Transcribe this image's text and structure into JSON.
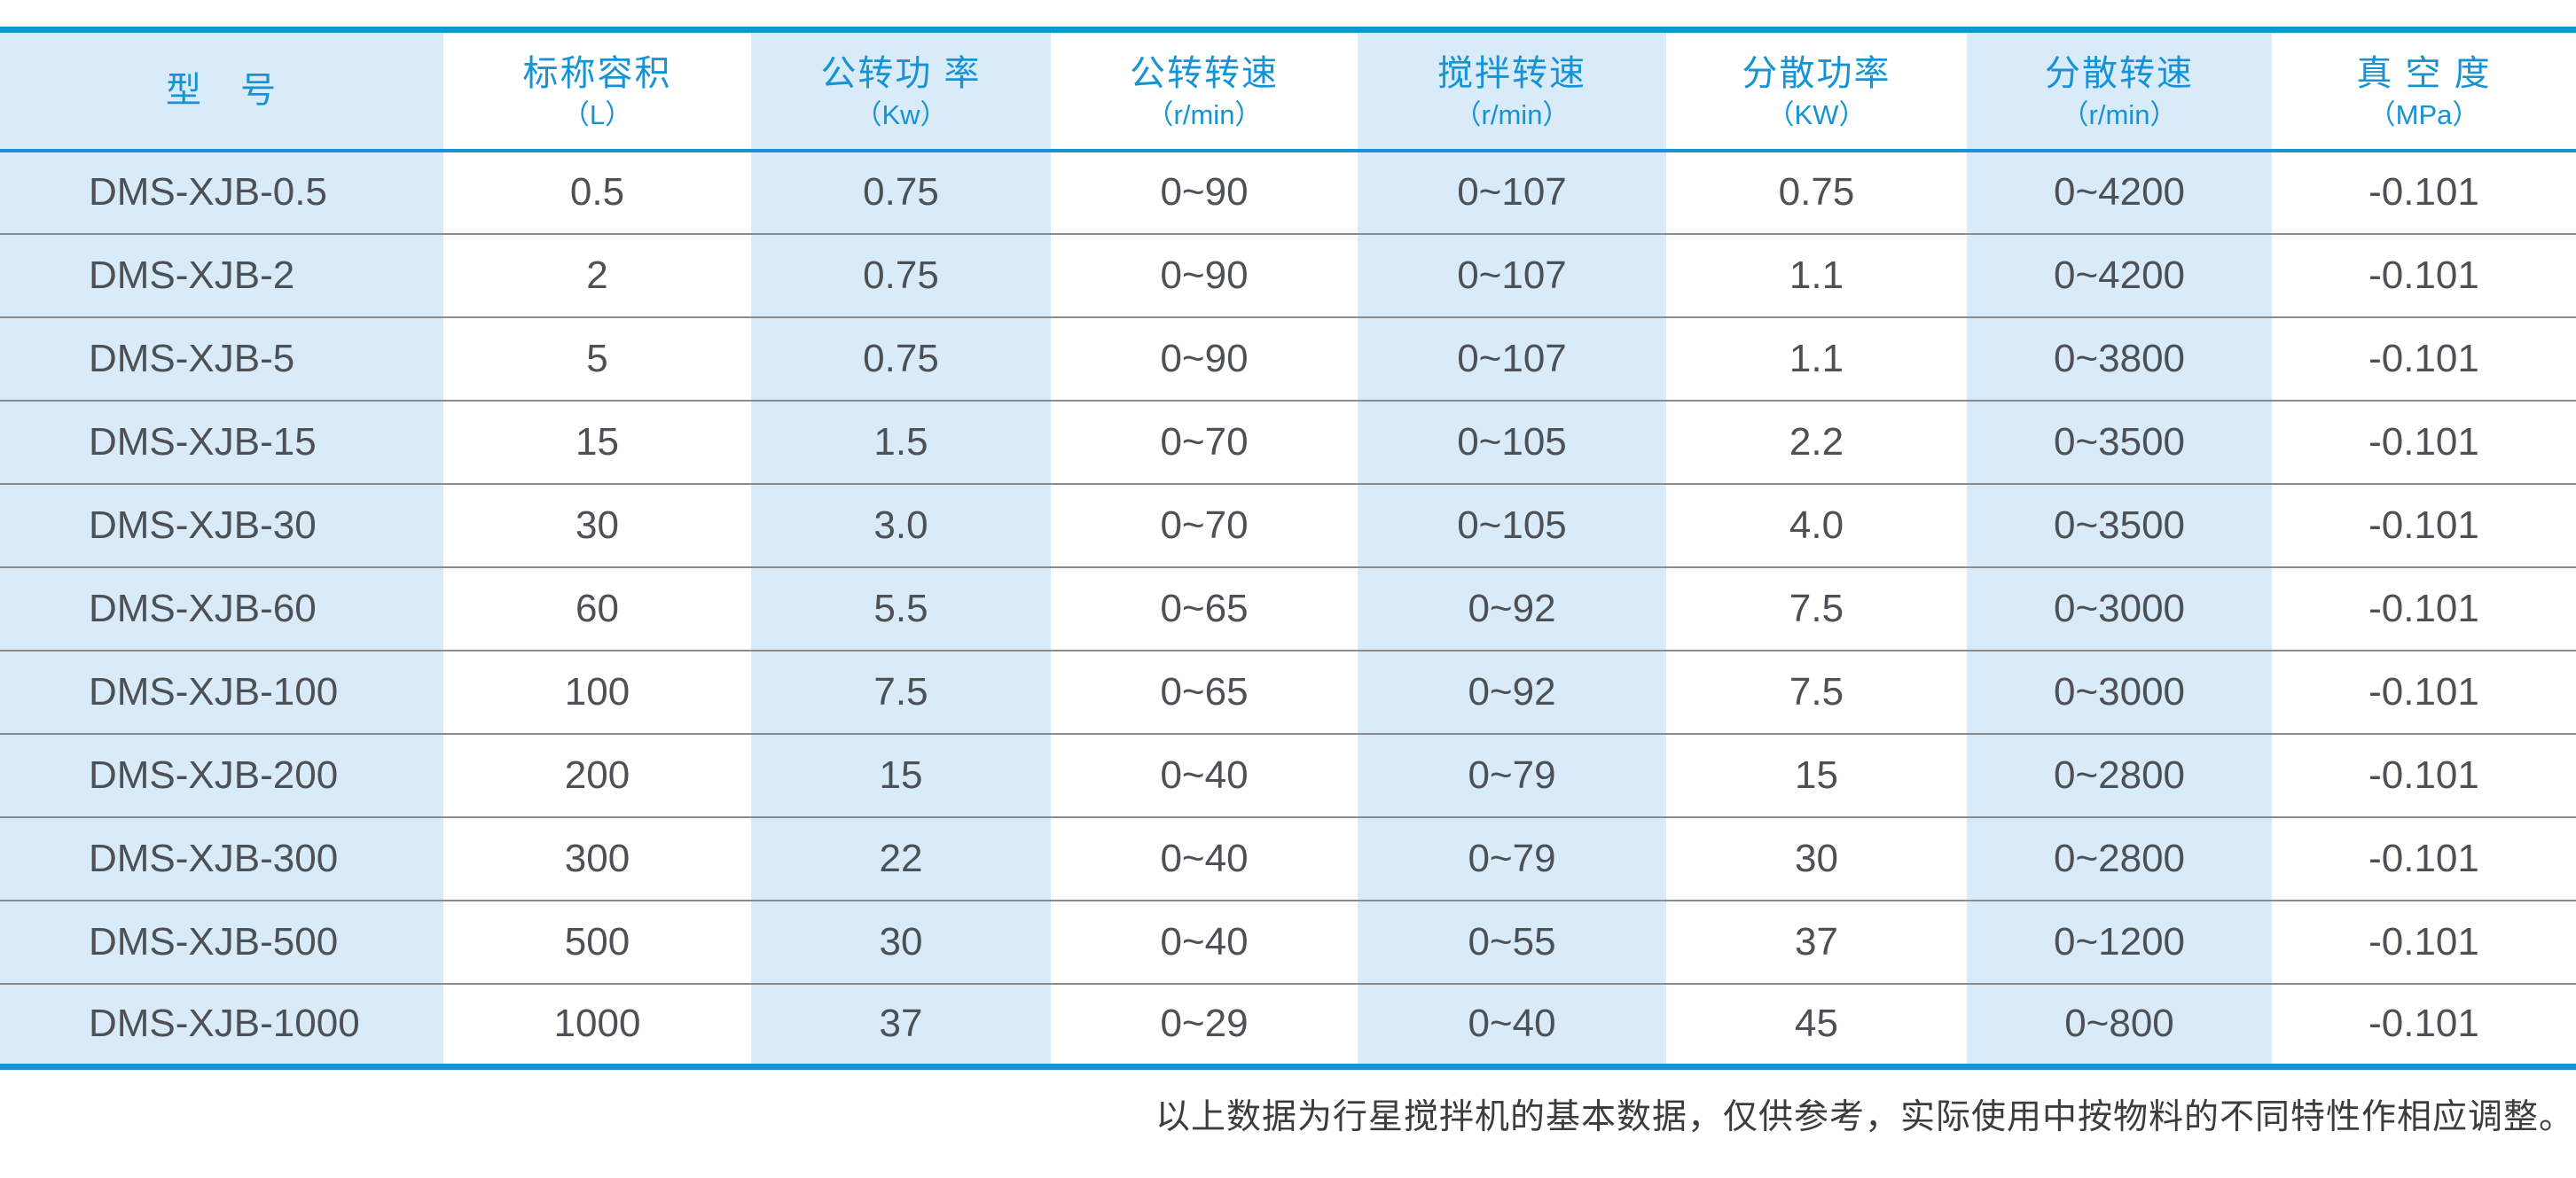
{
  "colors": {
    "accent_blue": "#1793d3",
    "stripe_blue": "#d9eaf8",
    "row_separator_gray": "#8c8c8c",
    "header_text_blue": "#1793d3",
    "body_text_gray": "#4d5054"
  },
  "table": {
    "columns": [
      {
        "title": "型　号",
        "unit": ""
      },
      {
        "title": "标称容积",
        "unit": "（L）"
      },
      {
        "title": "公转功 率",
        "unit": "（Kw）"
      },
      {
        "title": "公转转速",
        "unit": "（r/min）"
      },
      {
        "title": "搅拌转速",
        "unit": "（r/min）"
      },
      {
        "title": "分散功率",
        "unit": "（KW）"
      },
      {
        "title": "分散转速",
        "unit": "（r/min）"
      },
      {
        "title": "真 空 度",
        "unit": "（MPa）"
      }
    ],
    "rows": [
      [
        "DMS-XJB-0.5",
        "0.5",
        "0.75",
        "0~90",
        "0~107",
        "0.75",
        "0~4200",
        "-0.101"
      ],
      [
        "DMS-XJB-2",
        "2",
        "0.75",
        "0~90",
        "0~107",
        "1.1",
        "0~4200",
        "-0.101"
      ],
      [
        "DMS-XJB-5",
        "5",
        "0.75",
        "0~90",
        "0~107",
        "1.1",
        "0~3800",
        "-0.101"
      ],
      [
        "DMS-XJB-15",
        "15",
        "1.5",
        "0~70",
        "0~105",
        "2.2",
        "0~3500",
        "-0.101"
      ],
      [
        "DMS-XJB-30",
        "30",
        "3.0",
        "0~70",
        "0~105",
        "4.0",
        "0~3500",
        "-0.101"
      ],
      [
        "DMS-XJB-60",
        "60",
        "5.5",
        "0~65",
        "0~92",
        "7.5",
        "0~3000",
        "-0.101"
      ],
      [
        "DMS-XJB-100",
        "100",
        "7.5",
        "0~65",
        "0~92",
        "7.5",
        "0~3000",
        "-0.101"
      ],
      [
        "DMS-XJB-200",
        "200",
        "15",
        "0~40",
        "0~79",
        "15",
        "0~2800",
        "-0.101"
      ],
      [
        "DMS-XJB-300",
        "300",
        "22",
        "0~40",
        "0~79",
        "30",
        "0~2800",
        "-0.101"
      ],
      [
        "DMS-XJB-500",
        "500",
        "30",
        "0~40",
        "0~55",
        "37",
        "0~1200",
        "-0.101"
      ],
      [
        "DMS-XJB-1000",
        "1000",
        "37",
        "0~29",
        "0~40",
        "45",
        "0~800",
        "-0.101"
      ]
    ]
  },
  "footer": {
    "note": "以上数据为行星搅拌机的基本数据，仅供参考，实际使用中按物料的不同特性作相应调整。"
  }
}
